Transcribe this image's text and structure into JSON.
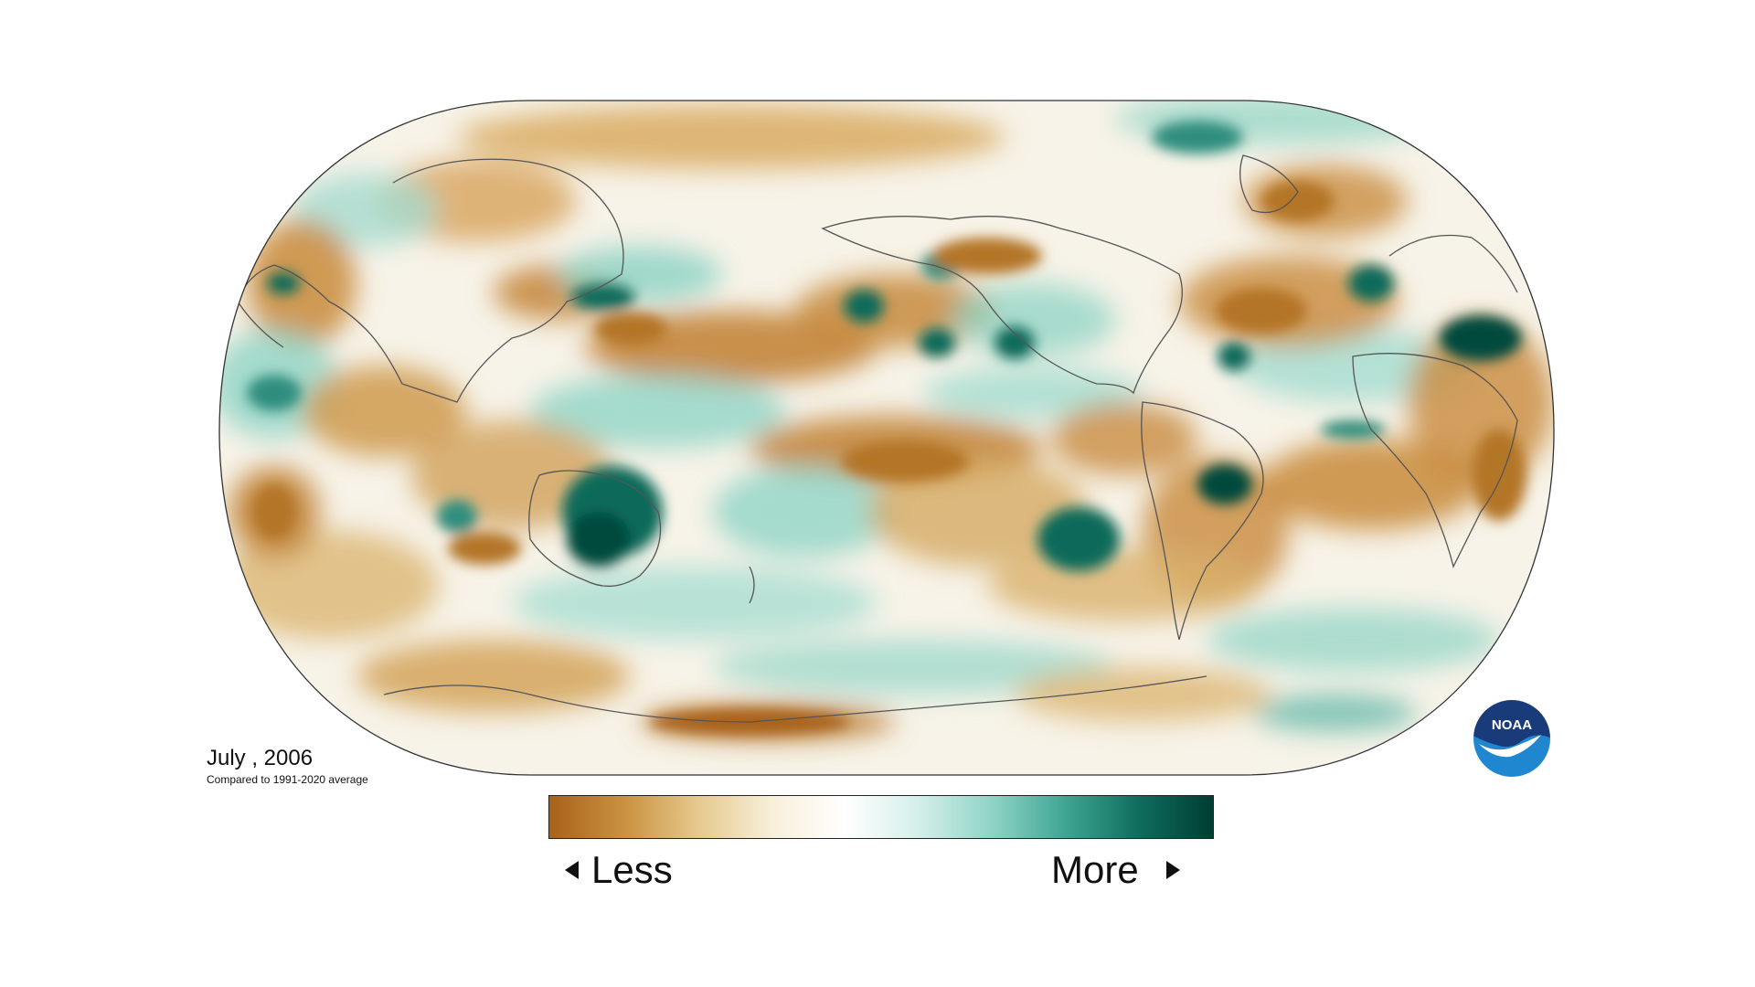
{
  "title": {
    "date": "July , 2006",
    "baseline": "Compared to 1991-2020 average"
  },
  "legend": {
    "low_label": "Less",
    "high_label": "More",
    "colors": [
      "#a8621a",
      "#c9913f",
      "#e6c88c",
      "#f7efd9",
      "#ffffff",
      "#d5efea",
      "#8fd4c6",
      "#3fa593",
      "#0e6d5d",
      "#003d32"
    ]
  },
  "logo": {
    "text": "NOAA",
    "colors": [
      "#1a3b7a",
      "#1f87d0",
      "#ffffff"
    ]
  },
  "colors": {
    "drier": "#b8792c",
    "wetter": "#0a6b5b",
    "outline": "#333333",
    "coast": "#555555"
  }
}
